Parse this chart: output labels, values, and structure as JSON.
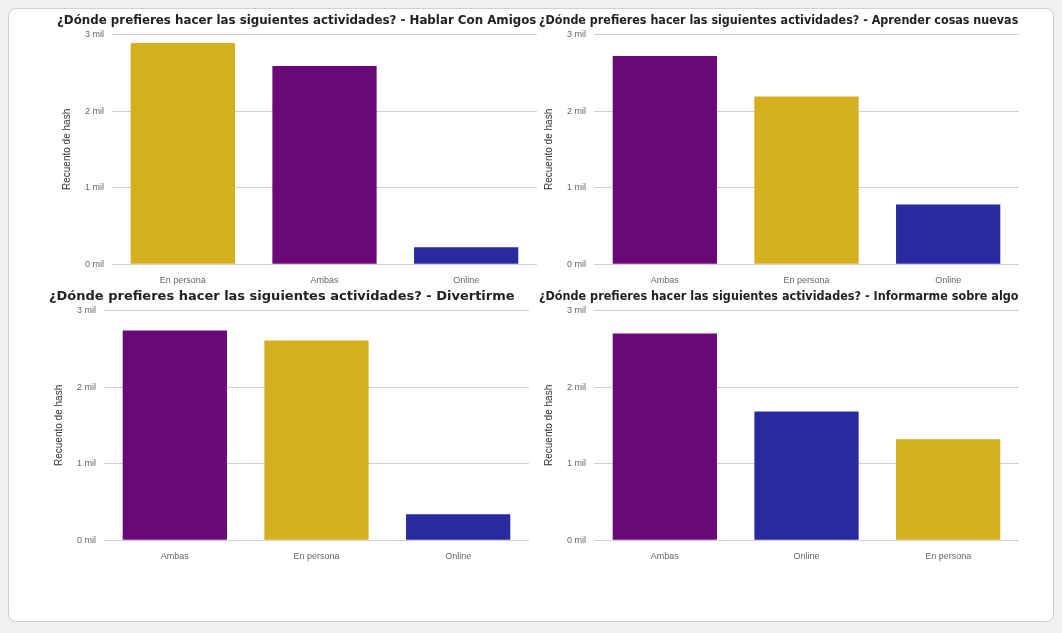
{
  "chart_data": [
    {
      "type": "bar",
      "title": "¿Dónde prefieres hacer las siguientes actividades? - Hablar Con Amigos",
      "ylabel": "Recuento de hash",
      "categories": [
        "En persona",
        "Ambas",
        "Online"
      ],
      "values": [
        2.89,
        2.59,
        0.22
      ],
      "colors": [
        "#d4b021",
        "#6a0878",
        "#2a2aa0"
      ],
      "ylim": [
        0,
        3
      ],
      "yticks": [
        {
          "value": 0,
          "label": "0 mil"
        },
        {
          "value": 1,
          "label": "1 mil"
        },
        {
          "value": 2,
          "label": "2 mil"
        },
        {
          "value": 3,
          "label": "3 mil"
        }
      ],
      "grid": "y"
    },
    {
      "type": "bar",
      "title": "¿Dónde prefieres hacer las siguientes actividades? - Aprender cosas nuevas",
      "ylabel": "Recuento de hash",
      "categories": [
        "Ambas",
        "En persona",
        "Online"
      ],
      "values": [
        2.72,
        2.19,
        0.78
      ],
      "colors": [
        "#6a0878",
        "#d4b021",
        "#2a2aa0"
      ],
      "ylim": [
        0,
        3
      ],
      "yticks": [
        {
          "value": 0,
          "label": "0 mil"
        },
        {
          "value": 1,
          "label": "1 mil"
        },
        {
          "value": 2,
          "label": "2 mil"
        },
        {
          "value": 3,
          "label": "3 mil"
        }
      ],
      "grid": "y"
    },
    {
      "type": "bar",
      "title": "¿Dónde prefieres hacer las siguientes actividades? - Divertirme",
      "ylabel": "Recuento de hash",
      "categories": [
        "Ambas",
        "En persona",
        "Online"
      ],
      "values": [
        2.74,
        2.61,
        0.34
      ],
      "colors": [
        "#6a0878",
        "#d4b021",
        "#2a2aa0"
      ],
      "ylim": [
        0,
        3
      ],
      "yticks": [
        {
          "value": 0,
          "label": "0 mil"
        },
        {
          "value": 1,
          "label": "1 mil"
        },
        {
          "value": 2,
          "label": "2 mil"
        },
        {
          "value": 3,
          "label": "3 mil"
        }
      ],
      "grid": "y"
    },
    {
      "type": "bar",
      "title": "¿Dónde prefieres hacer las siguientes actividades? - Informarme sobre algo",
      "ylabel": "Recuento de hash",
      "categories": [
        "Ambas",
        "Online",
        "En persona"
      ],
      "values": [
        2.7,
        1.68,
        1.32
      ],
      "colors": [
        "#6a0878",
        "#2a2aa0",
        "#d4b021"
      ],
      "ylim": [
        0,
        3
      ],
      "yticks": [
        {
          "value": 0,
          "label": "0 mil"
        },
        {
          "value": 1,
          "label": "1 mil"
        },
        {
          "value": 2,
          "label": "2 mil"
        },
        {
          "value": 3,
          "label": "3 mil"
        }
      ],
      "grid": "y"
    }
  ]
}
